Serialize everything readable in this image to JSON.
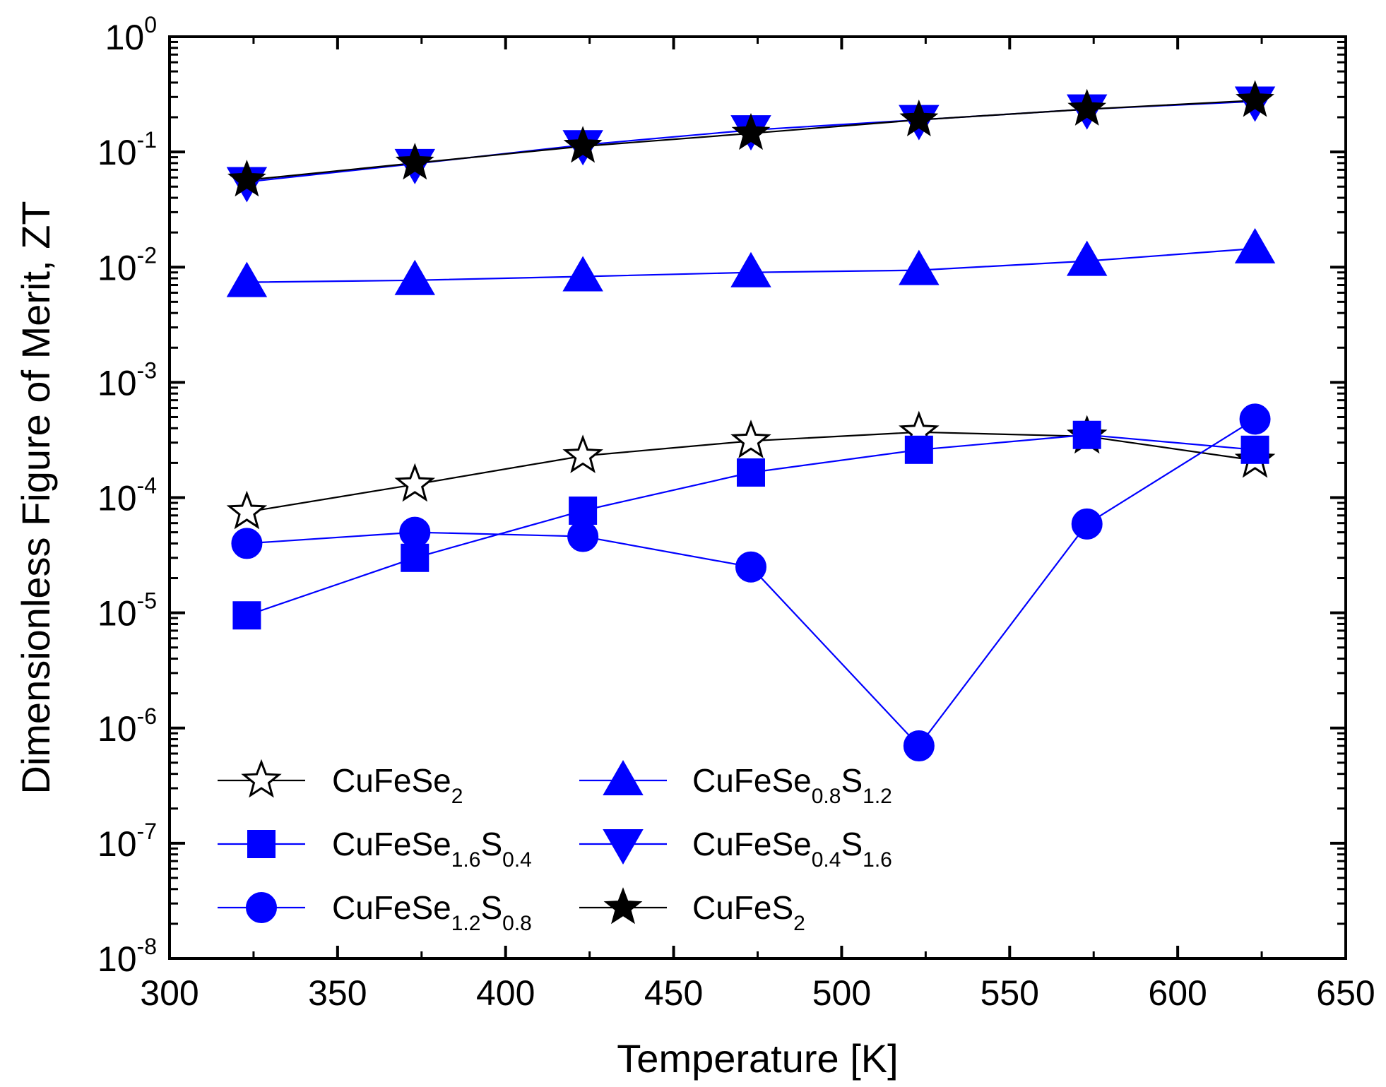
{
  "chart_data": {
    "type": "line",
    "title": "",
    "xlabel": "Temperature [K]",
    "ylabel": "Dimensionless Figure of Merit, ZT",
    "xlim": [
      300,
      650
    ],
    "ylim": [
      1e-08,
      1
    ],
    "yscale": "log",
    "xticks": [
      "300",
      "350",
      "400",
      "450",
      "500",
      "550",
      "600",
      "650"
    ],
    "yticks": [
      {
        "base": "10",
        "exp": "0",
        "value": 1
      },
      {
        "base": "10",
        "exp": "-1",
        "value": 0.1
      },
      {
        "base": "10",
        "exp": "-2",
        "value": 0.01
      },
      {
        "base": "10",
        "exp": "-3",
        "value": 0.001
      },
      {
        "base": "10",
        "exp": "-4",
        "value": 0.0001
      },
      {
        "base": "10",
        "exp": "-5",
        "value": 1e-05
      },
      {
        "base": "10",
        "exp": "-6",
        "value": 1e-06
      },
      {
        "base": "10",
        "exp": "-7",
        "value": 1e-07
      },
      {
        "base": "10",
        "exp": "-8",
        "value": 1e-08
      }
    ],
    "x": [
      323,
      373,
      423,
      473,
      523,
      573,
      623
    ],
    "series": [
      {
        "name": "CuFeSe2",
        "label_parts": [
          {
            "t": "CuFeSe",
            "sub": false
          },
          {
            "t": "2",
            "sub": true
          }
        ],
        "marker": "star-open",
        "color": "#000000",
        "marker_color": "#ffffff",
        "values": [
          7.5e-05,
          0.00013,
          0.00023,
          0.00031,
          0.00037,
          0.00034,
          0.00021
        ]
      },
      {
        "name": "CuFeSe1.6S0.4",
        "label_parts": [
          {
            "t": "CuFeSe",
            "sub": false
          },
          {
            "t": "1.6",
            "sub": true
          },
          {
            "t": "S",
            "sub": false
          },
          {
            "t": "0.4",
            "sub": true
          }
        ],
        "marker": "square",
        "color": "#0000ff",
        "marker_color": "#0000ff",
        "values": [
          9.5e-06,
          3e-05,
          7.7e-05,
          0.000165,
          0.00026,
          0.00035,
          0.00026
        ]
      },
      {
        "name": "CuFeSe1.2S0.8",
        "label_parts": [
          {
            "t": "CuFeSe",
            "sub": false
          },
          {
            "t": "1.2",
            "sub": true
          },
          {
            "t": "S",
            "sub": false
          },
          {
            "t": "0.8",
            "sub": true
          }
        ],
        "marker": "circle",
        "color": "#0000ff",
        "marker_color": "#0000ff",
        "values": [
          4e-05,
          5e-05,
          4.6e-05,
          2.5e-05,
          7e-07,
          5.9e-05,
          0.00048
        ]
      },
      {
        "name": "CuFeSe0.8S1.2",
        "label_parts": [
          {
            "t": "CuFeSe",
            "sub": false
          },
          {
            "t": "0.8",
            "sub": true
          },
          {
            "t": "S",
            "sub": false
          },
          {
            "t": "1.2",
            "sub": true
          }
        ],
        "marker": "triangle-up",
        "color": "#0000ff",
        "marker_color": "#0000ff",
        "values": [
          0.0074,
          0.0077,
          0.0083,
          0.009,
          0.0094,
          0.0113,
          0.0145
        ]
      },
      {
        "name": "CuFeSe0.4S1.6",
        "label_parts": [
          {
            "t": "CuFeSe",
            "sub": false
          },
          {
            "t": "0.4",
            "sub": true
          },
          {
            "t": "S",
            "sub": false
          },
          {
            "t": "1.6",
            "sub": true
          }
        ],
        "marker": "triangle-down",
        "color": "#0000ff",
        "marker_color": "#0000ff",
        "values": [
          0.055,
          0.079,
          0.115,
          0.155,
          0.19,
          0.235,
          0.275
        ]
      },
      {
        "name": "CuFeS2",
        "label_parts": [
          {
            "t": "CuFeS",
            "sub": false
          },
          {
            "t": "2",
            "sub": true
          }
        ],
        "marker": "star-filled",
        "color": "#000000",
        "marker_color": "#000000",
        "values": [
          0.057,
          0.08,
          0.112,
          0.145,
          0.19,
          0.235,
          0.28
        ]
      }
    ],
    "legend": "bottom-left, two columns",
    "grid": false
  }
}
